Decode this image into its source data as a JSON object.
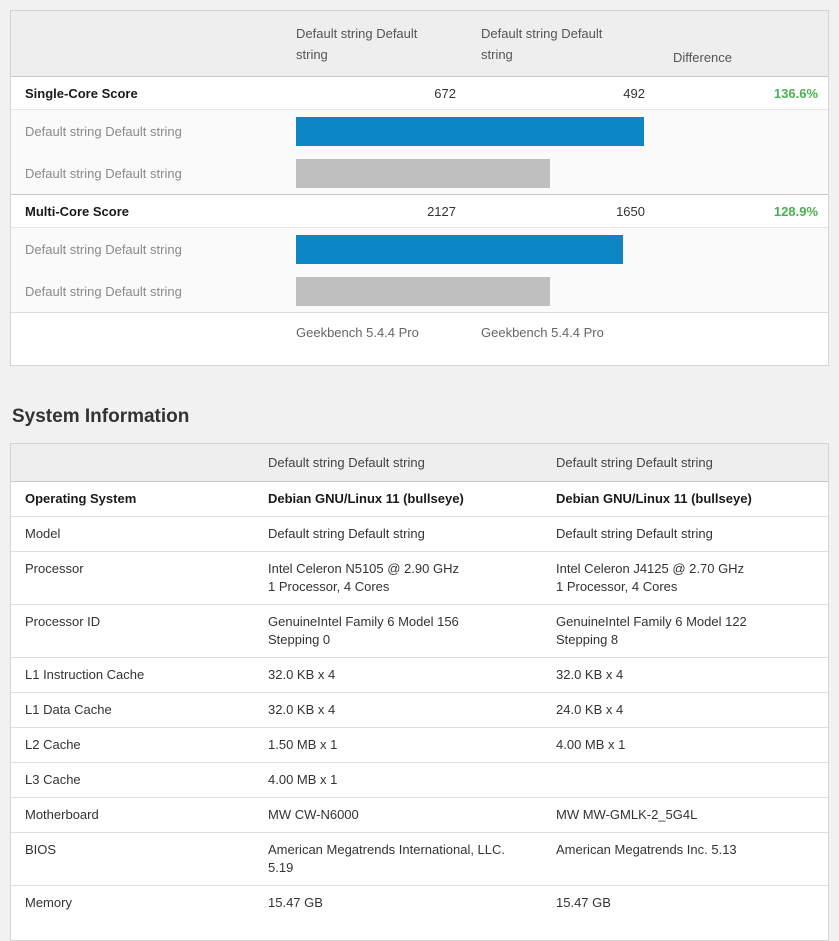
{
  "colors": {
    "accent_blue": "#0c86c4",
    "bar_gray": "#bfbfbf",
    "positive_green": "#4caf50"
  },
  "benchmark_table": {
    "columns": {
      "system1": "Default string Default string",
      "system2": "Default string Default string",
      "difference": "Difference"
    },
    "sections": [
      {
        "metric": "Single-Core Score",
        "system1_score": "672",
        "system2_score": "492",
        "difference": "136.6%",
        "bars": [
          {
            "label": "Default string Default string",
            "width_pct": 65.4,
            "color": "#0c86c4"
          },
          {
            "label": "Default string Default string",
            "width_pct": 47.7,
            "color": "#bfbfbf"
          }
        ]
      },
      {
        "metric": "Multi-Core Score",
        "system1_score": "2127",
        "system2_score": "1650",
        "difference": "128.9%",
        "bars": [
          {
            "label": "Default string Default string",
            "width_pct": 61.5,
            "color": "#0c86c4"
          },
          {
            "label": "Default string Default string",
            "width_pct": 47.7,
            "color": "#bfbfbf"
          }
        ]
      }
    ],
    "footer": {
      "system1": "Geekbench 5.4.4 Pro",
      "system2": "Geekbench 5.4.4 Pro"
    }
  },
  "system_information": {
    "title": "System Information",
    "columns": {
      "system1": "Default string Default string",
      "system2": "Default string Default string"
    },
    "rows": [
      {
        "label": "Operating System",
        "system1": "Debian GNU/Linux 11 (bullseye)",
        "system2": "Debian GNU/Linux 11 (bullseye)"
      },
      {
        "label": "Model",
        "system1": "Default string Default string",
        "system2": "Default string Default string"
      },
      {
        "label": "Processor",
        "system1": "Intel Celeron N5105 @ 2.90 GHz\n1 Processor, 4 Cores",
        "system2": "Intel Celeron J4125 @ 2.70 GHz\n1 Processor, 4 Cores"
      },
      {
        "label": "Processor ID",
        "system1": "GenuineIntel Family 6 Model 156\nStepping 0",
        "system2": "GenuineIntel Family 6 Model 122\nStepping 8"
      },
      {
        "label": "L1 Instruction Cache",
        "system1": "32.0 KB x 4",
        "system2": "32.0 KB x 4"
      },
      {
        "label": "L1 Data Cache",
        "system1": "32.0 KB x 4",
        "system2": "24.0 KB x 4"
      },
      {
        "label": "L2 Cache",
        "system1": "1.50 MB x 1",
        "system2": "4.00 MB x 1"
      },
      {
        "label": "L3 Cache",
        "system1": "4.00 MB x 1",
        "system2": ""
      },
      {
        "label": "Motherboard",
        "system1": "MW CW-N6000",
        "system2": "MW MW-GMLK-2_5G4L"
      },
      {
        "label": "BIOS",
        "system1": "American Megatrends International, LLC.\n5.19",
        "system2": "American Megatrends Inc. 5.13"
      },
      {
        "label": "Memory",
        "system1": "15.47 GB",
        "system2": "15.47 GB"
      }
    ]
  }
}
